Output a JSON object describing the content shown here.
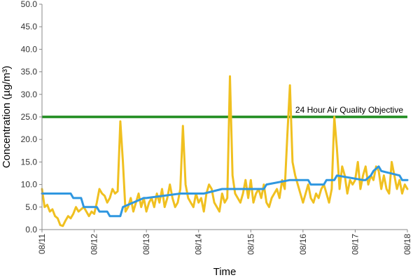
{
  "chart_data": {
    "type": "line",
    "title": "",
    "xlabel": "Time",
    "ylabel": "Concentration (µg/m³)",
    "x_ticks": [
      "08/11",
      "08/12",
      "08/13",
      "08/14",
      "08/15",
      "08/16",
      "08/17",
      "08/18"
    ],
    "xlim": [
      0,
      7
    ],
    "ylim": [
      0,
      50
    ],
    "y_ticks": [
      "0.0",
      "5.0",
      "10.0",
      "15.0",
      "20.0",
      "25.0",
      "30.0",
      "35.0",
      "40.0",
      "45.0",
      "50.0"
    ],
    "grid": false,
    "objective": {
      "label": "24 Hour Air Quality Objective",
      "value": 25,
      "color": "#1e8c1e"
    },
    "series": [
      {
        "color": "#f0c020",
        "x": [
          0,
          0.05,
          0.1,
          0.15,
          0.2,
          0.25,
          0.3,
          0.35,
          0.4,
          0.45,
          0.5,
          0.55,
          0.6,
          0.65,
          0.7,
          0.75,
          0.8,
          0.85,
          0.9,
          0.95,
          1.0,
          1.05,
          1.1,
          1.15,
          1.2,
          1.25,
          1.3,
          1.35,
          1.4,
          1.45,
          1.5,
          1.55,
          1.6,
          1.65,
          1.7,
          1.75,
          1.8,
          1.85,
          1.9,
          1.95,
          2.0,
          2.05,
          2.1,
          2.15,
          2.2,
          2.25,
          2.3,
          2.35,
          2.4,
          2.45,
          2.5,
          2.55,
          2.6,
          2.65,
          2.7,
          2.75,
          2.8,
          2.85,
          2.9,
          2.95,
          3.0,
          3.05,
          3.1,
          3.15,
          3.2,
          3.25,
          3.3,
          3.35,
          3.4,
          3.45,
          3.5,
          3.55,
          3.6,
          3.65,
          3.7,
          3.75,
          3.8,
          3.85,
          3.9,
          3.95,
          4.0,
          4.05,
          4.1,
          4.15,
          4.2,
          4.25,
          4.3,
          4.35,
          4.4,
          4.45,
          4.5,
          4.55,
          4.6,
          4.65,
          4.7,
          4.75,
          4.8,
          4.85,
          4.9,
          4.95,
          5.0,
          5.05,
          5.1,
          5.15,
          5.2,
          5.25,
          5.3,
          5.35,
          5.4,
          5.45,
          5.5,
          5.55,
          5.6,
          5.65,
          5.7,
          5.75,
          5.8,
          5.85,
          5.9,
          5.95,
          6.0,
          6.05,
          6.1,
          6.15,
          6.2,
          6.25,
          6.3,
          6.35,
          6.4,
          6.45,
          6.5,
          6.55,
          6.6,
          6.65,
          6.7,
          6.75,
          6.8,
          6.85,
          6.9,
          6.95,
          7.0
        ],
        "y": [
          9,
          5,
          5.5,
          4,
          4.5,
          3,
          2.5,
          1,
          0.8,
          2,
          3,
          2.5,
          3.5,
          5,
          4,
          4.5,
          5,
          4,
          3,
          4,
          3.5,
          6,
          9,
          8,
          7.5,
          6,
          7,
          9,
          8,
          8.5,
          24,
          15,
          4,
          5,
          7,
          4,
          6,
          8,
          5,
          7,
          4,
          6,
          7,
          5,
          8,
          6,
          9,
          5,
          7,
          10,
          7,
          5,
          6,
          9,
          23,
          10,
          7,
          6,
          5,
          8,
          6,
          7,
          4,
          8,
          10,
          9,
          6,
          5,
          4,
          8,
          6,
          7,
          34,
          12,
          8,
          7,
          6,
          8,
          11,
          7,
          11,
          6,
          8,
          9,
          7,
          10,
          6,
          5,
          7,
          8,
          9,
          7,
          11,
          9,
          21,
          32,
          15,
          12,
          10,
          8,
          6,
          8,
          10,
          7,
          6,
          8,
          7,
          9,
          10,
          8,
          6,
          9,
          25,
          18,
          9,
          14,
          12,
          8,
          11,
          10,
          11,
          15,
          9,
          12,
          14,
          10,
          12,
          11,
          14,
          13,
          9,
          12,
          9,
          8,
          15,
          12,
          9,
          11,
          8,
          10,
          9
        ],
        "max_label": "34"
      },
      {
        "color": "#2f97e0",
        "x": [
          0,
          0.55,
          0.6,
          0.75,
          0.8,
          1.05,
          1.1,
          1.25,
          1.3,
          1.5,
          1.55,
          1.95,
          2.0,
          2.65,
          2.7,
          3.05,
          3.1,
          3.45,
          3.5,
          4.25,
          4.3,
          4.75,
          4.8,
          5.1,
          5.15,
          5.4,
          5.45,
          5.6,
          5.65,
          6.15,
          6.2,
          6.3,
          6.35,
          6.45,
          6.5,
          6.85,
          6.9,
          7.0
        ],
        "y": [
          8,
          8,
          7,
          7,
          5,
          5,
          4,
          4,
          3,
          3,
          5,
          7,
          7,
          8,
          8,
          8,
          8,
          9,
          9,
          9,
          10,
          11,
          11,
          11,
          10,
          10,
          11,
          11,
          12,
          11,
          11,
          12,
          13,
          14,
          13,
          12,
          11,
          11
        ],
        "max_label": "14"
      }
    ]
  }
}
